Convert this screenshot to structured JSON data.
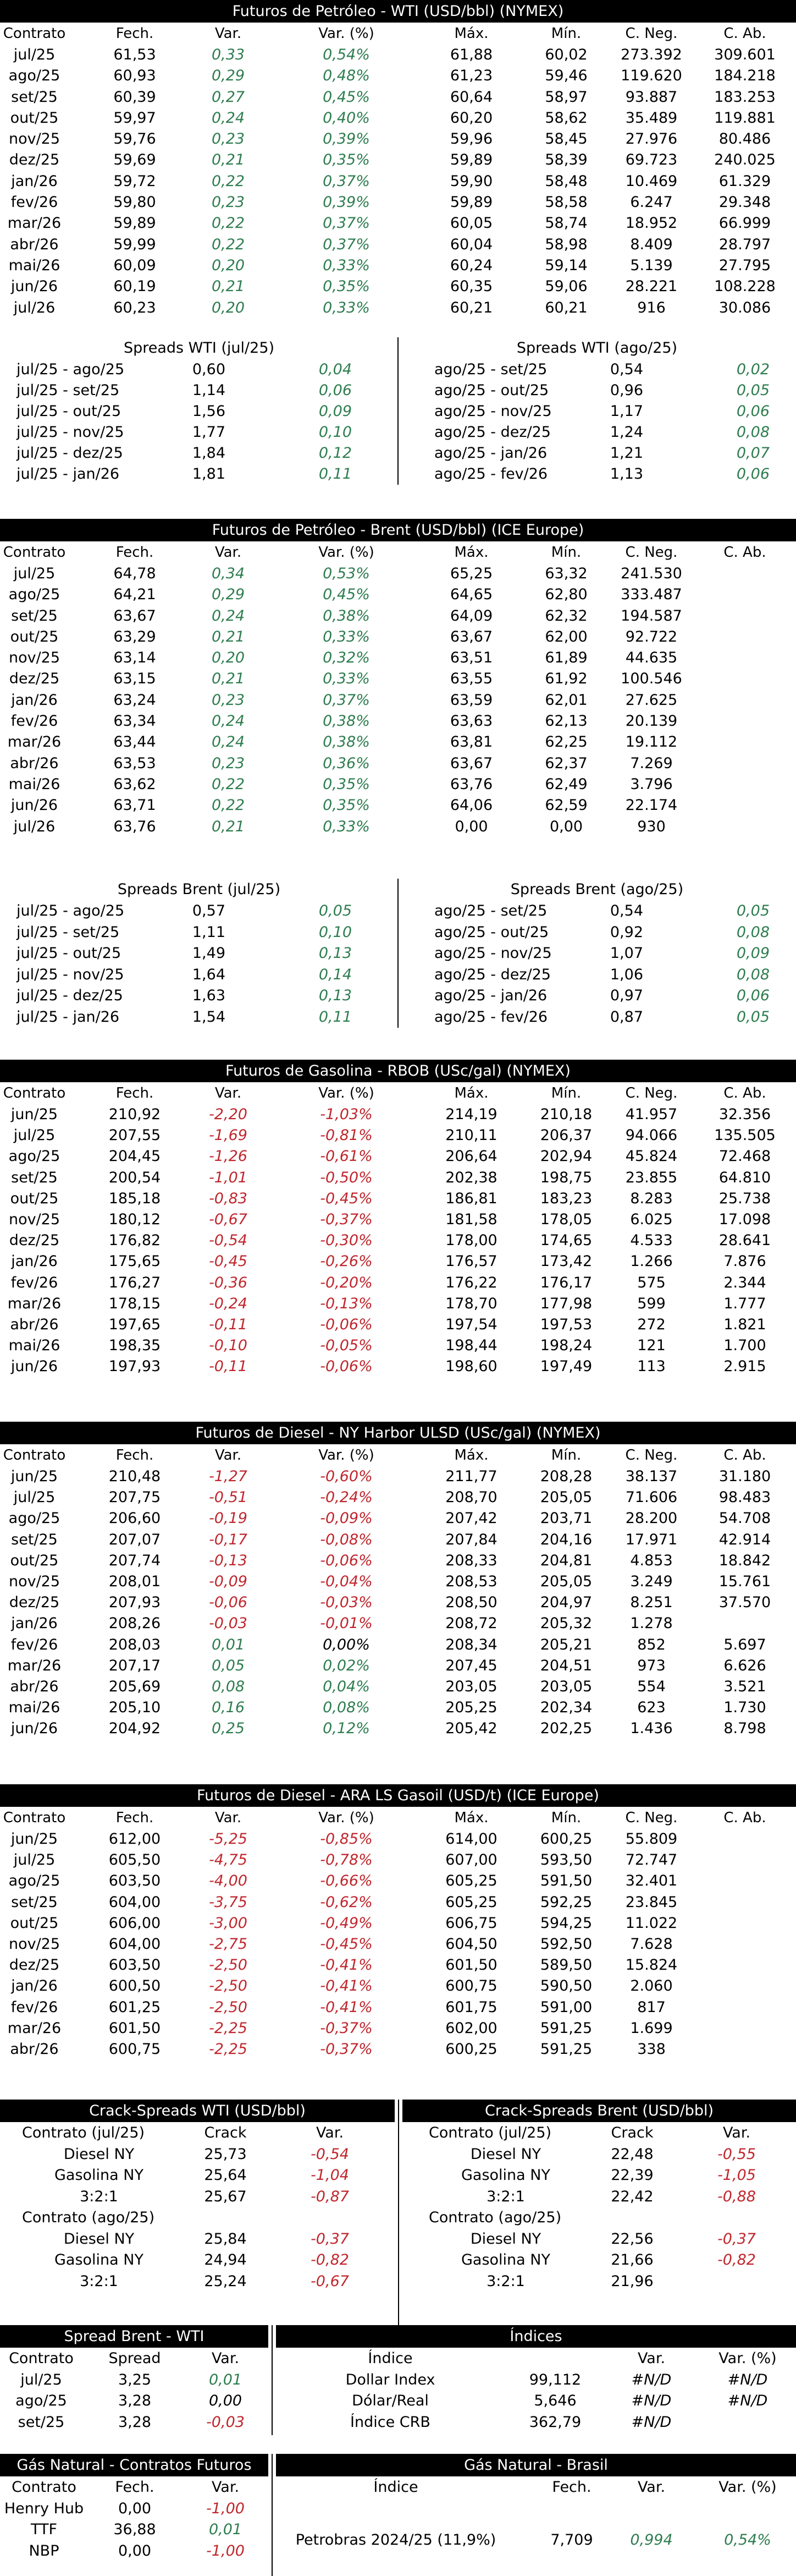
{
  "wti": {
    "title": "Futuros de Petróleo - WTI (USD/bbl) (NYMEX)",
    "headers": [
      "Contrato",
      "Fech.",
      "Var.",
      "Var. (%)",
      "Máx.",
      "Mín.",
      "C. Neg.",
      "C. Ab."
    ],
    "rows": [
      [
        "jul/25",
        "61,53",
        "0,33",
        "0,54%",
        "61,88",
        "60,02",
        "273.392",
        "309.601"
      ],
      [
        "ago/25",
        "60,93",
        "0,29",
        "0,48%",
        "61,23",
        "59,46",
        "119.620",
        "184.218"
      ],
      [
        "set/25",
        "60,39",
        "0,27",
        "0,45%",
        "60,64",
        "58,97",
        "93.887",
        "183.253"
      ],
      [
        "out/25",
        "59,97",
        "0,24",
        "0,40%",
        "60,20",
        "58,62",
        "35.489",
        "119.881"
      ],
      [
        "nov/25",
        "59,76",
        "0,23",
        "0,39%",
        "59,96",
        "58,45",
        "27.976",
        "80.486"
      ],
      [
        "dez/25",
        "59,69",
        "0,21",
        "0,35%",
        "59,89",
        "58,39",
        "69.723",
        "240.025"
      ],
      [
        "jan/26",
        "59,72",
        "0,22",
        "0,37%",
        "59,90",
        "58,48",
        "10.469",
        "61.329"
      ],
      [
        "fev/26",
        "59,80",
        "0,23",
        "0,39%",
        "59,89",
        "58,58",
        "6.247",
        "29.348"
      ],
      [
        "mar/26",
        "59,89",
        "0,22",
        "0,37%",
        "60,05",
        "58,74",
        "18.952",
        "66.999"
      ],
      [
        "abr/26",
        "59,99",
        "0,22",
        "0,37%",
        "60,04",
        "58,98",
        "8.409",
        "28.797"
      ],
      [
        "mai/26",
        "60,09",
        "0,20",
        "0,33%",
        "60,24",
        "59,14",
        "5.139",
        "27.795"
      ],
      [
        "jun/26",
        "60,19",
        "0,21",
        "0,35%",
        "60,35",
        "59,06",
        "28.221",
        "108.228"
      ],
      [
        "jul/26",
        "60,23",
        "0,20",
        "0,33%",
        "60,21",
        "60,21",
        "916",
        "30.086"
      ]
    ],
    "spreads_left_title": "Spreads WTI (jul/25)",
    "spreads_right_title": "Spreads WTI (ago/25)",
    "spreads_left": [
      [
        "jul/25 - ago/25",
        "0,60",
        "0,04"
      ],
      [
        "jul/25 - set/25",
        "1,14",
        "0,06"
      ],
      [
        "jul/25 - out/25",
        "1,56",
        "0,09"
      ],
      [
        "jul/25 - nov/25",
        "1,77",
        "0,10"
      ],
      [
        "jul/25 - dez/25",
        "1,84",
        "0,12"
      ],
      [
        "jul/25 - jan/26",
        "1,81",
        "0,11"
      ]
    ],
    "spreads_right": [
      [
        "ago/25 - set/25",
        "0,54",
        "0,02"
      ],
      [
        "ago/25 - out/25",
        "0,96",
        "0,05"
      ],
      [
        "ago/25 - nov/25",
        "1,17",
        "0,06"
      ],
      [
        "ago/25 - dez/25",
        "1,24",
        "0,08"
      ],
      [
        "ago/25 - jan/26",
        "1,21",
        "0,07"
      ],
      [
        "ago/25 - fev/26",
        "1,13",
        "0,06"
      ]
    ]
  },
  "brent": {
    "title": "Futuros de Petróleo - Brent (USD/bbl) (ICE Europe)",
    "headers": [
      "Contrato",
      "Fech.",
      "Var.",
      "Var. (%)",
      "Máx.",
      "Mín.",
      "C. Neg.",
      "C. Ab."
    ],
    "rows": [
      [
        "jul/25",
        "64,78",
        "0,34",
        "0,53%",
        "65,25",
        "63,32",
        "241.530",
        ""
      ],
      [
        "ago/25",
        "64,21",
        "0,29",
        "0,45%",
        "64,65",
        "62,80",
        "333.487",
        ""
      ],
      [
        "set/25",
        "63,67",
        "0,24",
        "0,38%",
        "64,09",
        "62,32",
        "194.587",
        ""
      ],
      [
        "out/25",
        "63,29",
        "0,21",
        "0,33%",
        "63,67",
        "62,00",
        "92.722",
        ""
      ],
      [
        "nov/25",
        "63,14",
        "0,20",
        "0,32%",
        "63,51",
        "61,89",
        "44.635",
        ""
      ],
      [
        "dez/25",
        "63,15",
        "0,21",
        "0,33%",
        "63,55",
        "61,92",
        "100.546",
        ""
      ],
      [
        "jan/26",
        "63,24",
        "0,23",
        "0,37%",
        "63,59",
        "62,01",
        "27.625",
        ""
      ],
      [
        "fev/26",
        "63,34",
        "0,24",
        "0,38%",
        "63,63",
        "62,13",
        "20.139",
        ""
      ],
      [
        "mar/26",
        "63,44",
        "0,24",
        "0,38%",
        "63,81",
        "62,25",
        "19.112",
        ""
      ],
      [
        "abr/26",
        "63,53",
        "0,23",
        "0,36%",
        "63,67",
        "62,37",
        "7.269",
        ""
      ],
      [
        "mai/26",
        "63,62",
        "0,22",
        "0,35%",
        "63,76",
        "62,49",
        "3.796",
        ""
      ],
      [
        "jun/26",
        "63,71",
        "0,22",
        "0,35%",
        "64,06",
        "62,59",
        "22.174",
        ""
      ],
      [
        "jul/26",
        "63,76",
        "0,21",
        "0,33%",
        "0,00",
        "0,00",
        "930",
        ""
      ]
    ],
    "spreads_left_title": "Spreads Brent (jul/25)",
    "spreads_right_title": "Spreads Brent (ago/25)",
    "spreads_left": [
      [
        "jul/25 - ago/25",
        "0,57",
        "0,05"
      ],
      [
        "jul/25 - set/25",
        "1,11",
        "0,10"
      ],
      [
        "jul/25 - out/25",
        "1,49",
        "0,13"
      ],
      [
        "jul/25 - nov/25",
        "1,64",
        "0,14"
      ],
      [
        "jul/25 - dez/25",
        "1,63",
        "0,13"
      ],
      [
        "jul/25 - jan/26",
        "1,54",
        "0,11"
      ]
    ],
    "spreads_right": [
      [
        "ago/25 - set/25",
        "0,54",
        "0,05"
      ],
      [
        "ago/25 - out/25",
        "0,92",
        "0,08"
      ],
      [
        "ago/25 - nov/25",
        "1,07",
        "0,09"
      ],
      [
        "ago/25 - dez/25",
        "1,06",
        "0,08"
      ],
      [
        "ago/25 - jan/26",
        "0,97",
        "0,06"
      ],
      [
        "ago/25 - fev/26",
        "0,87",
        "0,05"
      ]
    ]
  },
  "rbob": {
    "title": "Futuros de Gasolina - RBOB (USc/gal) (NYMEX)",
    "headers": [
      "Contrato",
      "Fech.",
      "Var.",
      "Var. (%)",
      "Máx.",
      "Mín.",
      "C. Neg.",
      "C. Ab."
    ],
    "rows": [
      [
        "jun/25",
        "210,92",
        "-2,20",
        "-1,03%",
        "214,19",
        "210,18",
        "41.957",
        "32.356"
      ],
      [
        "jul/25",
        "207,55",
        "-1,69",
        "-0,81%",
        "210,11",
        "206,37",
        "94.066",
        "135.505"
      ],
      [
        "ago/25",
        "204,45",
        "-1,26",
        "-0,61%",
        "206,64",
        "202,94",
        "45.824",
        "72.468"
      ],
      [
        "set/25",
        "200,54",
        "-1,01",
        "-0,50%",
        "202,38",
        "198,75",
        "23.855",
        "64.810"
      ],
      [
        "out/25",
        "185,18",
        "-0,83",
        "-0,45%",
        "186,81",
        "183,23",
        "8.283",
        "25.738"
      ],
      [
        "nov/25",
        "180,12",
        "-0,67",
        "-0,37%",
        "181,58",
        "178,05",
        "6.025",
        "17.098"
      ],
      [
        "dez/25",
        "176,82",
        "-0,54",
        "-0,30%",
        "178,00",
        "174,65",
        "4.533",
        "28.641"
      ],
      [
        "jan/26",
        "175,65",
        "-0,45",
        "-0,26%",
        "176,57",
        "173,42",
        "1.266",
        "7.876"
      ],
      [
        "fev/26",
        "176,27",
        "-0,36",
        "-0,20%",
        "176,22",
        "176,17",
        "575",
        "2.344"
      ],
      [
        "mar/26",
        "178,15",
        "-0,24",
        "-0,13%",
        "178,70",
        "177,98",
        "599",
        "1.777"
      ],
      [
        "abr/26",
        "197,65",
        "-0,11",
        "-0,06%",
        "197,54",
        "197,53",
        "272",
        "1.821"
      ],
      [
        "mai/26",
        "198,35",
        "-0,10",
        "-0,05%",
        "198,44",
        "198,24",
        "121",
        "1.700"
      ],
      [
        "jun/26",
        "197,93",
        "-0,11",
        "-0,06%",
        "198,60",
        "197,49",
        "113",
        "2.915"
      ]
    ]
  },
  "diesel_ny": {
    "title": "Futuros de Diesel - NY Harbor ULSD (USc/gal) (NYMEX)",
    "headers": [
      "Contrato",
      "Fech.",
      "Var.",
      "Var. (%)",
      "Máx.",
      "Mín.",
      "C. Neg.",
      "C. Ab."
    ],
    "rows": [
      [
        "jun/25",
        "210,48",
        "-1,27",
        "-0,60%",
        "211,77",
        "208,28",
        "38.137",
        "31.180"
      ],
      [
        "jul/25",
        "207,75",
        "-0,51",
        "-0,24%",
        "208,70",
        "205,05",
        "71.606",
        "98.483"
      ],
      [
        "ago/25",
        "206,60",
        "-0,19",
        "-0,09%",
        "207,42",
        "203,71",
        "28.200",
        "54.708"
      ],
      [
        "set/25",
        "207,07",
        "-0,17",
        "-0,08%",
        "207,84",
        "204,16",
        "17.971",
        "42.914"
      ],
      [
        "out/25",
        "207,74",
        "-0,13",
        "-0,06%",
        "208,33",
        "204,81",
        "4.853",
        "18.842"
      ],
      [
        "nov/25",
        "208,01",
        "-0,09",
        "-0,04%",
        "208,53",
        "205,05",
        "3.249",
        "15.761"
      ],
      [
        "dez/25",
        "207,93",
        "-0,06",
        "-0,03%",
        "208,50",
        "204,97",
        "8.251",
        "37.570"
      ],
      [
        "jan/26",
        "208,26",
        "-0,03",
        "-0,01%",
        "208,72",
        "205,32",
        "1.278",
        ""
      ],
      [
        "fev/26",
        "208,03",
        "0,01",
        "0,00%",
        "208,34",
        "205,21",
        "852",
        "5.697"
      ],
      [
        "mar/26",
        "207,17",
        "0,05",
        "0,02%",
        "207,45",
        "204,51",
        "973",
        "6.626"
      ],
      [
        "abr/26",
        "205,69",
        "0,08",
        "0,04%",
        "203,05",
        "203,05",
        "554",
        "3.521"
      ],
      [
        "mai/26",
        "205,10",
        "0,16",
        "0,08%",
        "205,25",
        "202,34",
        "623",
        "1.730"
      ],
      [
        "jun/26",
        "204,92",
        "0,25",
        "0,12%",
        "205,42",
        "202,25",
        "1.436",
        "8.798"
      ]
    ]
  },
  "diesel_ara": {
    "title": "Futuros de Diesel - ARA LS Gasoil (USD/t) (ICE Europe)",
    "headers": [
      "Contrato",
      "Fech.",
      "Var.",
      "Var. (%)",
      "Máx.",
      "Mín.",
      "C. Neg.",
      "C. Ab."
    ],
    "rows": [
      [
        "jun/25",
        "612,00",
        "-5,25",
        "-0,85%",
        "614,00",
        "600,25",
        "55.809",
        ""
      ],
      [
        "jul/25",
        "605,50",
        "-4,75",
        "-0,78%",
        "607,00",
        "593,50",
        "72.747",
        ""
      ],
      [
        "ago/25",
        "603,50",
        "-4,00",
        "-0,66%",
        "605,25",
        "591,50",
        "32.401",
        ""
      ],
      [
        "set/25",
        "604,00",
        "-3,75",
        "-0,62%",
        "605,25",
        "592,25",
        "23.845",
        ""
      ],
      [
        "out/25",
        "606,00",
        "-3,00",
        "-0,49%",
        "606,75",
        "594,25",
        "11.022",
        ""
      ],
      [
        "nov/25",
        "604,00",
        "-2,75",
        "-0,45%",
        "604,50",
        "592,50",
        "7.628",
        ""
      ],
      [
        "dez/25",
        "603,50",
        "-2,50",
        "-0,41%",
        "601,50",
        "589,50",
        "15.824",
        ""
      ],
      [
        "jan/26",
        "600,50",
        "-2,50",
        "-0,41%",
        "600,75",
        "590,50",
        "2.060",
        ""
      ],
      [
        "fev/26",
        "601,25",
        "-2,50",
        "-0,41%",
        "601,75",
        "591,00",
        "817",
        ""
      ],
      [
        "mar/26",
        "601,50",
        "-2,25",
        "-0,37%",
        "602,00",
        "591,25",
        "1.699",
        ""
      ],
      [
        "abr/26",
        "600,75",
        "-2,25",
        "-0,37%",
        "600,25",
        "591,25",
        "338",
        ""
      ]
    ]
  },
  "crack": {
    "left_title": "Crack-Spreads WTI (USD/bbl)",
    "right_title": "Crack-Spreads Brent (USD/bbl)",
    "col_crack": "Crack",
    "col_var": "Var.",
    "left_groups": [
      {
        "label": "Contrato (jul/25)",
        "rows": [
          [
            "Diesel NY",
            "25,73",
            "-0,54"
          ],
          [
            "Gasolina NY",
            "25,64",
            "-1,04"
          ],
          [
            "3:2:1",
            "25,67",
            "-0,87"
          ]
        ]
      },
      {
        "label": "Contrato (ago/25)",
        "rows": [
          [
            "Diesel NY",
            "25,84",
            "-0,37"
          ],
          [
            "Gasolina NY",
            "24,94",
            "-0,82"
          ],
          [
            "3:2:1",
            "25,24",
            "-0,67"
          ]
        ]
      }
    ],
    "right_groups": [
      {
        "label": "Contrato (jul/25)",
        "rows": [
          [
            "Diesel NY",
            "22,48",
            "-0,55"
          ],
          [
            "Gasolina NY",
            "22,39",
            "-1,05"
          ],
          [
            "3:2:1",
            "22,42",
            "-0,88"
          ]
        ]
      },
      {
        "label": "Contrato (ago/25)",
        "rows": [
          [
            "Diesel NY",
            "22,56",
            "-0,37"
          ],
          [
            "Gasolina NY",
            "21,66",
            "-0,82"
          ],
          [
            "3:2:1",
            "21,96",
            ""
          ]
        ]
      }
    ]
  },
  "spread_bw": {
    "title": "Spread Brent - WTI",
    "headers": [
      "Contrato",
      "Spread",
      "Var."
    ],
    "rows": [
      [
        "jul/25",
        "3,25",
        "0,01"
      ],
      [
        "ago/25",
        "3,28",
        "0,00"
      ],
      [
        "set/25",
        "3,28",
        "-0,03"
      ]
    ]
  },
  "indices": {
    "title": "Índices",
    "headers": [
      "Índice",
      "",
      "Var.",
      "Var. (%)"
    ],
    "rows": [
      [
        "Dollar Index",
        "99,112",
        "#N/D",
        "#N/D"
      ],
      [
        "Dólar/Real",
        "5,646",
        "#N/D",
        "#N/D"
      ],
      [
        "Índice CRB",
        "362,79",
        "#N/D",
        ""
      ]
    ]
  },
  "gas_futures": {
    "title": "Gás Natural - Contratos Futuros",
    "headers": [
      "Contrato",
      "Fech.",
      "Var."
    ],
    "rows": [
      [
        "Henry Hub",
        "0,00",
        "-1,00"
      ],
      [
        "TTF",
        "36,88",
        "0,01"
      ],
      [
        "NBP",
        "0,00",
        "-1,00"
      ]
    ]
  },
  "gas_brasil": {
    "title": "Gás Natural - Brasil",
    "headers": [
      "Índice",
      "Fech.",
      "Var.",
      "Var. (%)"
    ],
    "rows": [
      [
        "Petrobras 2024/25 (11,9%)",
        "7,709",
        "0,994",
        "0,54%"
      ]
    ]
  },
  "colors": {
    "positive": "#2e7d4f",
    "negative": "#c0262d",
    "header_bg": "#000000"
  }
}
